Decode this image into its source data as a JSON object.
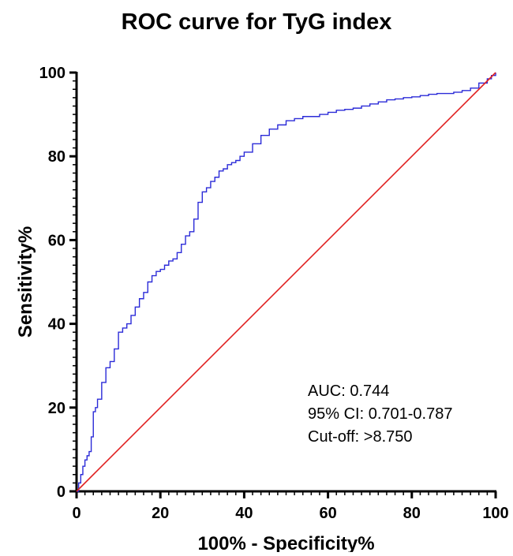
{
  "chart_data": {
    "type": "line",
    "title": "ROC curve for TyG index",
    "xlabel": "100% - Specificity%",
    "ylabel": "Sensitivity%",
    "xlim": [
      0,
      100
    ],
    "ylim": [
      0,
      100
    ],
    "xticks": [
      "0",
      "20",
      "40",
      "60",
      "80",
      "100"
    ],
    "yticks": [
      "0",
      "20",
      "40",
      "60",
      "80",
      "100"
    ],
    "grid": false,
    "series": [
      {
        "color": "#2b2bd8",
        "style": "step",
        "x": [
          0,
          0.5,
          1,
          1.5,
          2,
          2.5,
          3,
          3.5,
          4,
          4.5,
          5,
          6,
          7,
          8,
          9,
          10,
          11,
          12,
          13,
          14,
          15,
          16,
          17,
          18,
          19,
          20,
          21,
          22,
          23,
          24,
          25,
          26,
          27,
          28,
          29,
          30,
          31,
          32,
          33,
          34,
          35,
          36,
          37,
          38,
          39,
          40,
          42,
          44,
          46,
          48,
          50,
          52,
          54,
          56,
          58,
          60,
          62,
          64,
          66,
          68,
          70,
          72,
          74,
          76,
          78,
          80,
          82,
          84,
          86,
          88,
          90,
          92,
          94,
          96,
          98,
          99,
          100
        ],
        "y": [
          0,
          2,
          4,
          6,
          7.5,
          8.5,
          9.5,
          13,
          19,
          20,
          22,
          26,
          29.5,
          31,
          34,
          38,
          39,
          40,
          42,
          44,
          46,
          47.5,
          50,
          51.5,
          52.5,
          53,
          54,
          55,
          55.5,
          57,
          59,
          61,
          62,
          65,
          69,
          71.5,
          72.5,
          74,
          75,
          76.5,
          77,
          78,
          78.5,
          79,
          80,
          81,
          83,
          85,
          86.5,
          87.5,
          88.5,
          89,
          89.5,
          89.5,
          90,
          90.5,
          91,
          91.2,
          91.5,
          92,
          92.5,
          93,
          93.5,
          93.7,
          94,
          94.2,
          94.5,
          94.8,
          95,
          95,
          95.3,
          95.7,
          96.3,
          97.5,
          98.5,
          99.3,
          100
        ]
      },
      {
        "color": "#e02020",
        "style": "line",
        "x": [
          0,
          100
        ],
        "y": [
          0,
          100
        ]
      }
    ],
    "annotations": [
      "AUC: 0.744",
      "95% CI: 0.701-0.787",
      "Cut-off: >8.750"
    ]
  }
}
